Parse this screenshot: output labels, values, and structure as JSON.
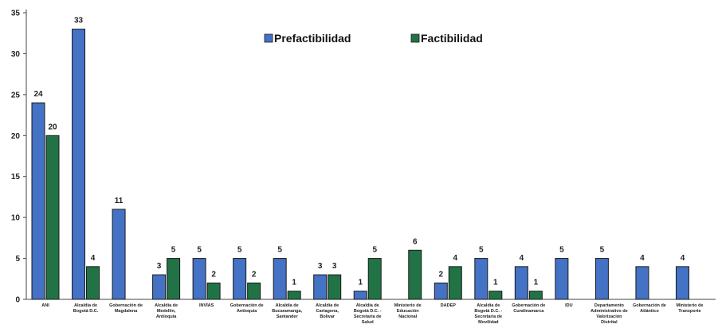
{
  "chart_data": {
    "type": "bar",
    "categories": [
      [
        "ANI"
      ],
      [
        "Alcaldía de",
        "Bogotá D.C."
      ],
      [
        "Gobernación de",
        "Magdalena"
      ],
      [
        "Alcaldía de",
        "Medellín,",
        "Antioquia"
      ],
      [
        "INVÍAS"
      ],
      [
        "Gobernación de",
        "Antioquia"
      ],
      [
        "Alcaldía de",
        "Bucaramanga,",
        "Santander"
      ],
      [
        "Alcaldía de",
        "Cartagena,",
        "Bolívar"
      ],
      [
        "Alcaldía de",
        "Bogotá D.C. -",
        "Secretaría de",
        "Salud"
      ],
      [
        "Ministerio de",
        "Educación",
        "Nacional"
      ],
      [
        "DADEP"
      ],
      [
        "Alcaldía de",
        "Bogotá D.C. -",
        "Secretaría de",
        "Movilidad"
      ],
      [
        "Gobernación de",
        "Cundinamarca"
      ],
      [
        "IDU"
      ],
      [
        "Departamento",
        "Administrativo de",
        "Valorización",
        "Distrital"
      ],
      [
        "Gobernación de",
        "Atlántico"
      ],
      [
        "Ministerio de",
        "Transporte"
      ]
    ],
    "series": [
      {
        "name": "Prefactibilidad",
        "color": "#4472C4",
        "values": [
          24,
          33,
          11,
          3,
          5,
          5,
          5,
          3,
          1,
          null,
          2,
          5,
          4,
          5,
          5,
          4,
          4
        ]
      },
      {
        "name": "Factibilidad",
        "color": "#217346",
        "values": [
          20,
          4,
          null,
          5,
          2,
          2,
          1,
          3,
          5,
          6,
          4,
          1,
          1,
          null,
          null,
          null,
          null
        ]
      }
    ],
    "ylim": [
      0,
      35
    ],
    "yticks": [
      0,
      5,
      10,
      15,
      20,
      25,
      30,
      35
    ],
    "title": "",
    "xlabel": "",
    "ylabel": "",
    "grid": false,
    "legend_position": "top-center"
  }
}
